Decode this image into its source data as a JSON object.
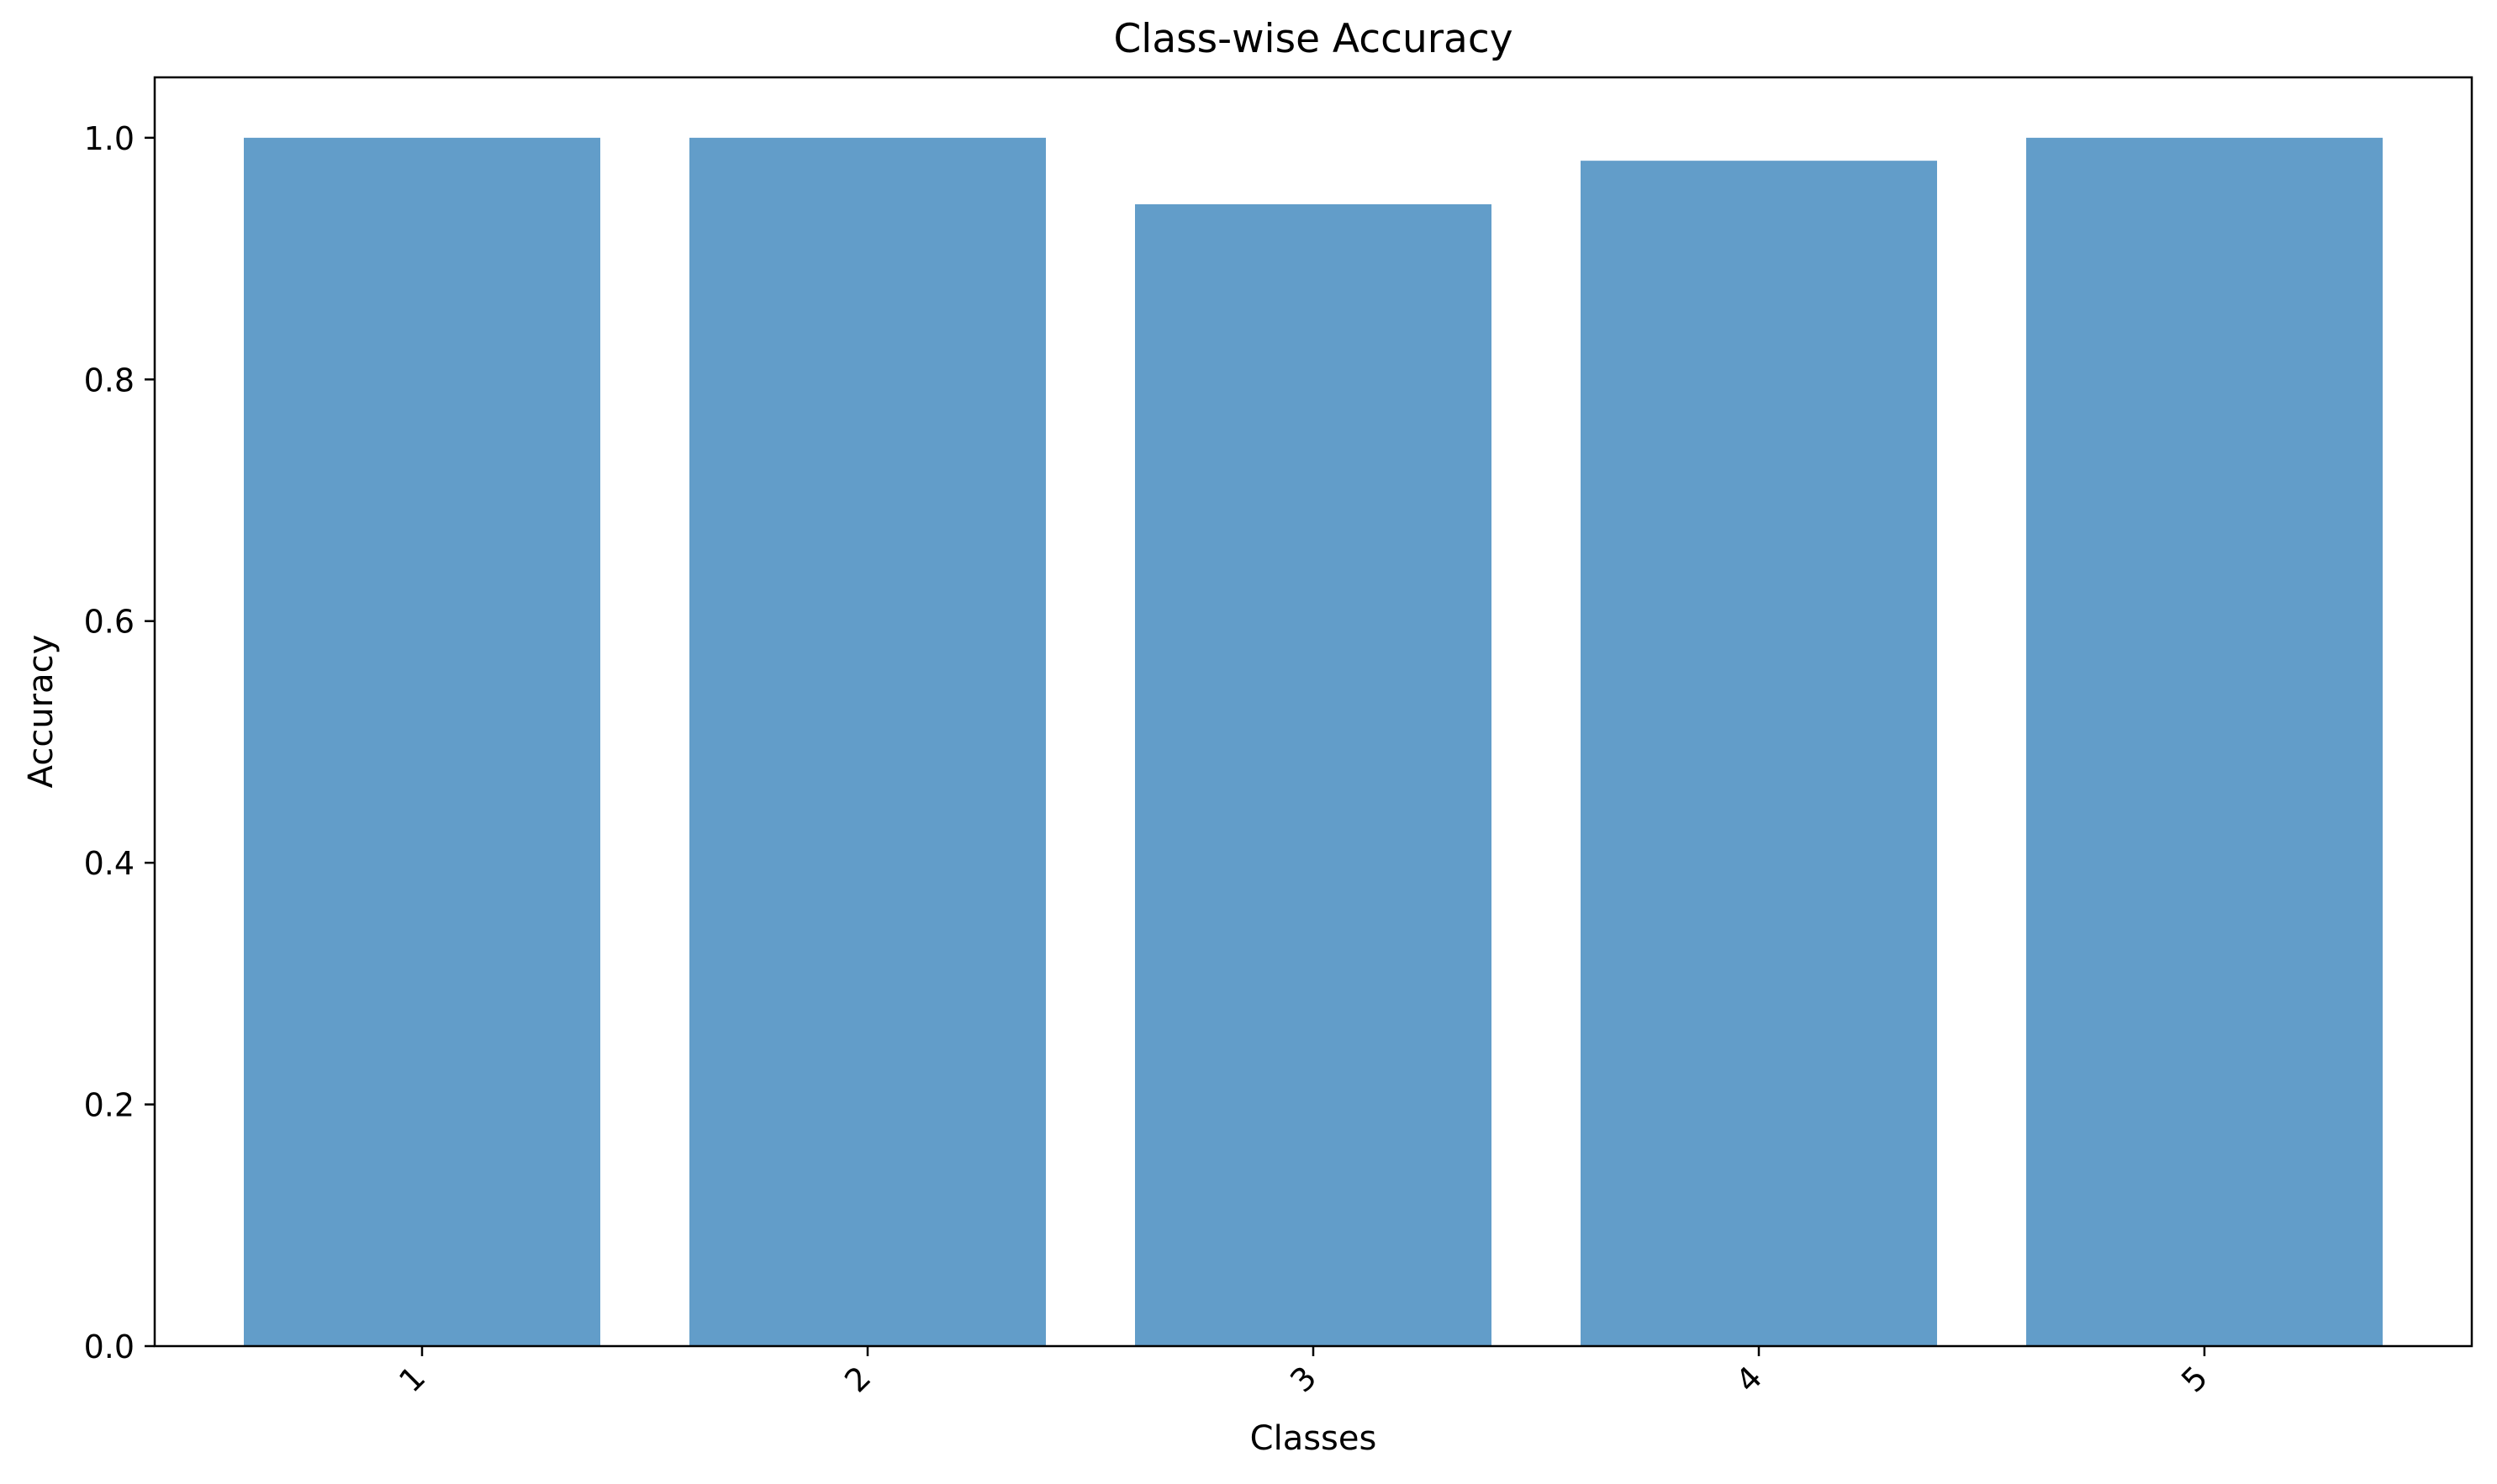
{
  "chart_data": {
    "type": "bar",
    "title": "Class-wise Accuracy",
    "xlabel": "Classes",
    "ylabel": "Accuracy",
    "categories": [
      "1",
      "2",
      "3",
      "4",
      "5"
    ],
    "values": [
      1.0,
      1.0,
      0.945,
      0.981,
      1.0
    ],
    "ylim": [
      0,
      1.05
    ],
    "yticks": [
      0.0,
      0.2,
      0.4,
      0.6,
      0.8,
      1.0
    ],
    "ytick_labels": [
      "0.0",
      "0.2",
      "0.4",
      "0.6",
      "0.8",
      "1.0"
    ],
    "xtick_rotation_deg": 45,
    "grid": false,
    "legend": "none",
    "bar_color": "#2878b5",
    "bar_opacity": 0.73
  }
}
